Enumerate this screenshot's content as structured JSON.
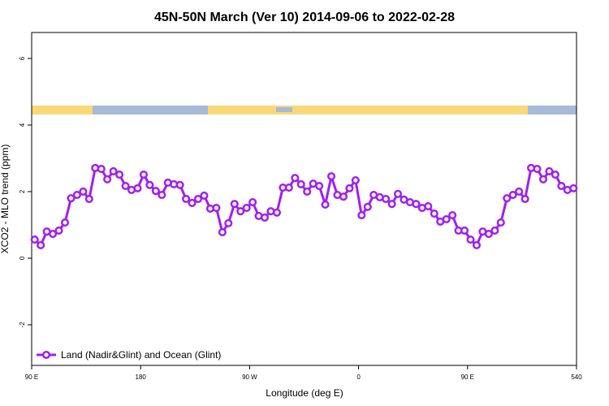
{
  "chart_data": {
    "type": "line",
    "title": "45N-50N March (Ver 10)   2014-09-06 to 2022-02-28",
    "x_label": "Longitude (deg E)",
    "y_label": "XCO2 - MLO trend (ppm)",
    "x": [
      92.5,
      97.5,
      102.5,
      107.5,
      112.5,
      117.5,
      122.5,
      127.5,
      132.5,
      137.5,
      142.5,
      147.5,
      152.5,
      157.5,
      162.5,
      167.5,
      172.5,
      177.5,
      182.5,
      187.5,
      192.5,
      197.5,
      202.5,
      207.5,
      212.5,
      217.5,
      222.5,
      227.5,
      232.5,
      237.5,
      242.5,
      247.5,
      252.5,
      257.5,
      262.5,
      267.5,
      272.5,
      277.5,
      282.5,
      287.5,
      292.5,
      297.5,
      302.5,
      307.5,
      312.5,
      317.5,
      322.5,
      327.5,
      332.5,
      337.5,
      342.5,
      347.5,
      352.5,
      357.5,
      362.5,
      367.5,
      372.5,
      377.5,
      382.5,
      387.5,
      392.5,
      397.5,
      402.5,
      407.5,
      412.5,
      417.5,
      422.5,
      427.5,
      432.5,
      437.5,
      442.5,
      447.5,
      452.5,
      457.5,
      462.5,
      467.5,
      472.5,
      477.5,
      482.5,
      487.5,
      492.5,
      497.5,
      502.5,
      507.5,
      512.5,
      517.5,
      522.5,
      527.5,
      532.5,
      537.5
    ],
    "series": [
      {
        "name": "Land (Nadir&Glint) and Ocean (Glint)",
        "color": "#a020f0",
        "values": [
          0.56,
          0.39,
          0.8,
          0.73,
          0.83,
          1.07,
          1.8,
          1.9,
          2.0,
          1.78,
          2.71,
          2.68,
          2.37,
          2.61,
          2.51,
          2.17,
          2.05,
          2.1,
          2.51,
          2.2,
          2.02,
          1.9,
          2.27,
          2.22,
          2.2,
          1.78,
          1.66,
          1.78,
          1.88,
          1.49,
          1.51,
          0.78,
          1.05,
          1.63,
          1.41,
          1.51,
          1.68,
          1.27,
          1.22,
          1.41,
          1.37,
          2.12,
          2.12,
          2.41,
          2.22,
          2.0,
          2.24,
          2.17,
          1.61,
          2.46,
          1.9,
          1.85,
          2.1,
          2.34,
          1.29,
          1.54,
          1.9,
          1.83,
          1.78,
          1.63,
          1.93,
          1.76,
          1.68,
          1.63,
          1.51,
          1.56,
          1.34,
          1.1,
          1.17,
          1.29,
          0.83,
          0.83,
          0.56,
          0.39,
          0.8,
          0.73,
          0.83,
          1.07,
          1.8,
          1.9,
          2.0,
          1.78,
          2.71,
          2.68,
          2.37,
          2.61,
          2.51,
          2.17,
          2.05,
          2.1
        ]
      }
    ],
    "xlim": [
      90,
      540
    ],
    "xticks": [
      {
        "value": 90,
        "label": "90 E"
      },
      180,
      {
        "value": 270,
        "label": "90 W"
      },
      {
        "value": 360,
        "label": "0"
      },
      {
        "value": 450,
        "label": "90 E"
      },
      540
    ],
    "ylim": [
      -3.22,
      6.78
    ],
    "yticks": [
      -2,
      0,
      2,
      4,
      6
    ],
    "legend": "bottom-left"
  }
}
